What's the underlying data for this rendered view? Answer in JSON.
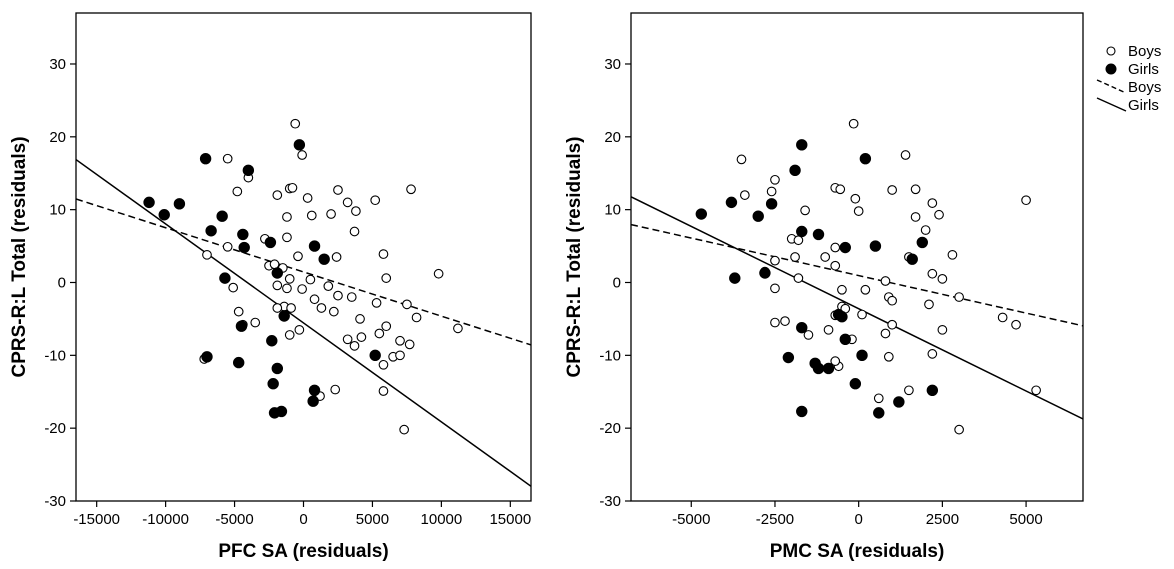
{
  "chart_data": [
    {
      "type": "scatter",
      "xlabel": "PFC SA (residuals)",
      "ylabel": "CPRS-R:L Total (residuals)",
      "xlim": [
        -16500,
        16500
      ],
      "ylim": [
        -30,
        37
      ],
      "xticks": [
        "-15000",
        "-10000",
        "-5000",
        "0",
        "5000",
        "10000",
        "15000"
      ],
      "xtick_values": [
        -15000,
        -10000,
        -5000,
        0,
        5000,
        10000,
        15000
      ],
      "yticks": [
        "30",
        "20",
        "10",
        "0",
        "-10",
        "-20",
        "-30"
      ],
      "ytick_values": [
        30,
        20,
        10,
        0,
        -10,
        -20,
        -30
      ],
      "grid": false,
      "series": [
        {
          "name": "Boys",
          "marker": "open-circle",
          "points": [
            [
              -600,
              21.8
            ],
            [
              -100,
              17.5
            ],
            [
              -5500,
              17
            ],
            [
              -4000,
              14.4
            ],
            [
              -1000,
              12.9
            ],
            [
              -800,
              13
            ],
            [
              -4800,
              12.5
            ],
            [
              -1900,
              12
            ],
            [
              2500,
              12.7
            ],
            [
              7800,
              12.8
            ],
            [
              3200,
              11
            ],
            [
              5200,
              11.3
            ],
            [
              300,
              11.6
            ],
            [
              3800,
              9.8
            ],
            [
              600,
              9.2
            ],
            [
              2000,
              9.4
            ],
            [
              -1200,
              9
            ],
            [
              3700,
              7
            ],
            [
              -2800,
              6
            ],
            [
              -1200,
              6.2
            ],
            [
              -5500,
              4.9
            ],
            [
              -400,
              3.6
            ],
            [
              -7000,
              3.8
            ],
            [
              -2500,
              2.3
            ],
            [
              2400,
              3.5
            ],
            [
              5800,
              3.9
            ],
            [
              -2100,
              2.5
            ],
            [
              -1500,
              2
            ],
            [
              -1000,
              0.5
            ],
            [
              500,
              0.4
            ],
            [
              6000,
              0.6
            ],
            [
              9800,
              1.2
            ],
            [
              -1900,
              -0.4
            ],
            [
              -5100,
              -0.7
            ],
            [
              -1200,
              -0.8
            ],
            [
              -100,
              -0.9
            ],
            [
              1800,
              -0.5
            ],
            [
              2500,
              -1.8
            ],
            [
              3500,
              -2
            ],
            [
              5300,
              -2.8
            ],
            [
              800,
              -2.3
            ],
            [
              7500,
              -3
            ],
            [
              -1400,
              -3.3
            ],
            [
              -1900,
              -3.5
            ],
            [
              -900,
              -3.5
            ],
            [
              2200,
              -4
            ],
            [
              1300,
              -3.5
            ],
            [
              -4700,
              -4
            ],
            [
              4100,
              -5
            ],
            [
              8200,
              -4.8
            ],
            [
              -4400,
              -5.8
            ],
            [
              -3500,
              -5.5
            ],
            [
              6000,
              -6
            ],
            [
              3200,
              -7.8
            ],
            [
              5500,
              -7
            ],
            [
              4200,
              -7.5
            ],
            [
              11200,
              -6.3
            ],
            [
              -300,
              -6.5
            ],
            [
              -1000,
              -7.2
            ],
            [
              7000,
              -8
            ],
            [
              7700,
              -8.5
            ],
            [
              3700,
              -8.7
            ],
            [
              6500,
              -10.2
            ],
            [
              7000,
              -10
            ],
            [
              -7200,
              -10.5
            ],
            [
              5800,
              -11.3
            ],
            [
              1200,
              -15.6
            ],
            [
              2300,
              -14.7
            ],
            [
              5800,
              -14.9
            ],
            [
              7300,
              -20.2
            ]
          ]
        },
        {
          "name": "Girls",
          "marker": "filled-circle",
          "points": [
            [
              -7100,
              17
            ],
            [
              -300,
              18.9
            ],
            [
              -4000,
              15.4
            ],
            [
              -11200,
              11
            ],
            [
              -10100,
              9.3
            ],
            [
              -9000,
              10.8
            ],
            [
              -5900,
              9.1
            ],
            [
              -6700,
              7.1
            ],
            [
              -4400,
              6.6
            ],
            [
              -2400,
              5.5
            ],
            [
              -4300,
              4.8
            ],
            [
              800,
              5
            ],
            [
              -1900,
              1.3
            ],
            [
              1500,
              3.2
            ],
            [
              -5700,
              0.6
            ],
            [
              -4500,
              -6
            ],
            [
              5200,
              -10
            ],
            [
              -7000,
              -10.2
            ],
            [
              -4700,
              -11
            ],
            [
              -2300,
              -8
            ],
            [
              -1900,
              -11.8
            ],
            [
              -2200,
              -13.9
            ],
            [
              800,
              -14.8
            ],
            [
              -2100,
              -17.9
            ],
            [
              -1600,
              -17.7
            ],
            [
              700,
              -16.3
            ],
            [
              -1400,
              -4.6
            ]
          ]
        }
      ],
      "lines": [
        {
          "name": "Boys",
          "style": "dashed",
          "slope": -0.000607,
          "intercept": 1.45
        },
        {
          "name": "Girls",
          "style": "solid",
          "slope": -0.001359,
          "intercept": -5.55
        }
      ]
    },
    {
      "type": "scatter",
      "xlabel": "PMC SA (residuals)",
      "ylabel": "CPRS-R:L Total (residuals)",
      "xlim": [
        -6800,
        6700
      ],
      "ylim": [
        -30,
        37
      ],
      "xticks": [
        "-5000",
        "-2500",
        "0",
        "2500",
        "5000"
      ],
      "xtick_values": [
        -5000,
        -2500,
        0,
        2500,
        5000
      ],
      "yticks": [
        "30",
        "20",
        "10",
        "0",
        "-10",
        "-20",
        "-30"
      ],
      "ytick_values": [
        30,
        20,
        10,
        0,
        -10,
        -20,
        -30
      ],
      "grid": false,
      "series": [
        {
          "name": "Boys",
          "marker": "open-circle",
          "points": [
            [
              -150,
              21.8
            ],
            [
              1400,
              17.5
            ],
            [
              -3500,
              16.9
            ],
            [
              -2500,
              14.1
            ],
            [
              -2600,
              12.5
            ],
            [
              -3400,
              12
            ],
            [
              -700,
              13
            ],
            [
              -550,
              12.8
            ],
            [
              1700,
              12.8
            ],
            [
              1000,
              12.7
            ],
            [
              2200,
              10.9
            ],
            [
              -100,
              11.5
            ],
            [
              5000,
              11.3
            ],
            [
              -1600,
              9.9
            ],
            [
              0,
              9.8
            ],
            [
              1700,
              9
            ],
            [
              2400,
              9.3
            ],
            [
              -2000,
              6
            ],
            [
              2000,
              7.2
            ],
            [
              -1800,
              5.8
            ],
            [
              -1900,
              3.5
            ],
            [
              -700,
              4.8
            ],
            [
              -700,
              2.3
            ],
            [
              1500,
              3.5
            ],
            [
              -2500,
              3
            ],
            [
              -2800,
              1.5
            ],
            [
              2800,
              3.8
            ],
            [
              -1000,
              3.5
            ],
            [
              -1800,
              0.6
            ],
            [
              800,
              0.2
            ],
            [
              2200,
              1.2
            ],
            [
              2500,
              0.5
            ],
            [
              -2500,
              -0.8
            ],
            [
              -500,
              -1
            ],
            [
              200,
              -1
            ],
            [
              900,
              -2
            ],
            [
              1000,
              -2.5
            ],
            [
              3000,
              -2
            ],
            [
              -2500,
              -5.5
            ],
            [
              -2200,
              -5.3
            ],
            [
              -500,
              -3.3
            ],
            [
              -400,
              -3.6
            ],
            [
              2100,
              -3
            ],
            [
              4300,
              -4.8
            ],
            [
              -700,
              -4.5
            ],
            [
              -900,
              -6.5
            ],
            [
              100,
              -4.4
            ],
            [
              1000,
              -5.8
            ],
            [
              4700,
              -5.8
            ],
            [
              2500,
              -6.5
            ],
            [
              -1500,
              -7.2
            ],
            [
              800,
              -7
            ],
            [
              -600,
              -11.5
            ],
            [
              -700,
              -10.8
            ],
            [
              2200,
              -9.8
            ],
            [
              900,
              -10.2
            ],
            [
              1500,
              -14.8
            ],
            [
              600,
              -15.9
            ],
            [
              5300,
              -14.8
            ],
            [
              3000,
              -20.2
            ],
            [
              -200,
              -7.8
            ]
          ]
        },
        {
          "name": "Girls",
          "marker": "filled-circle",
          "points": [
            [
              -1700,
              18.9
            ],
            [
              200,
              17
            ],
            [
              -1900,
              15.4
            ],
            [
              -4700,
              9.4
            ],
            [
              -3800,
              11
            ],
            [
              -3000,
              9.1
            ],
            [
              -2600,
              10.8
            ],
            [
              -1700,
              7
            ],
            [
              -1200,
              6.6
            ],
            [
              -400,
              4.8
            ],
            [
              500,
              5
            ],
            [
              1900,
              5.5
            ],
            [
              -2800,
              1.3
            ],
            [
              1600,
              3.2
            ],
            [
              -3700,
              0.6
            ],
            [
              -1700,
              -6.2
            ],
            [
              -500,
              -4.7
            ],
            [
              -600,
              -4.4
            ],
            [
              -400,
              -7.8
            ],
            [
              100,
              -10
            ],
            [
              -2100,
              -10.3
            ],
            [
              -1300,
              -11.1
            ],
            [
              -1200,
              -11.8
            ],
            [
              -900,
              -11.8
            ],
            [
              2200,
              -14.8
            ],
            [
              -100,
              -13.9
            ],
            [
              1200,
              -16.4
            ],
            [
              -1700,
              -17.7
            ],
            [
              600,
              -17.9
            ]
          ]
        }
      ],
      "lines": [
        {
          "name": "Boys",
          "style": "dashed",
          "slope": -0.00103,
          "intercept": 0.95
        },
        {
          "name": "Girls",
          "style": "solid",
          "slope": -0.00226,
          "intercept": -3.6
        }
      ]
    }
  ],
  "legend": {
    "placement": "right",
    "entries": [
      {
        "label": "Boys",
        "symbol": "open-circle"
      },
      {
        "label": "Girls",
        "symbol": "filled-circle"
      },
      {
        "label": "Boys",
        "symbol": "dashed-line"
      },
      {
        "label": "Girls",
        "symbol": "solid-line"
      }
    ]
  }
}
